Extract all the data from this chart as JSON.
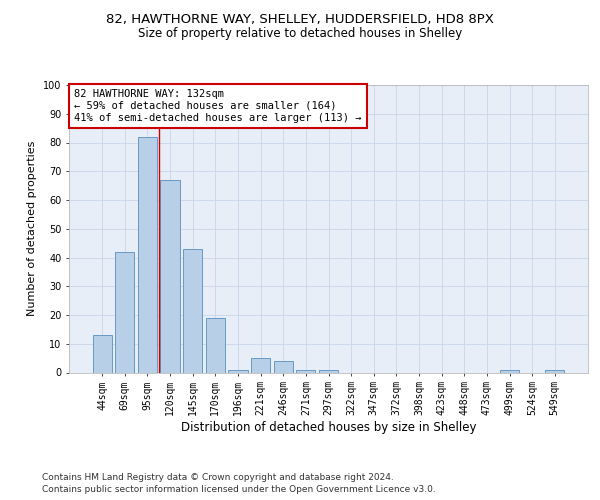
{
  "title_line1": "82, HAWTHORNE WAY, SHELLEY, HUDDERSFIELD, HD8 8PX",
  "title_line2": "Size of property relative to detached houses in Shelley",
  "xlabel": "Distribution of detached houses by size in Shelley",
  "ylabel": "Number of detached properties",
  "categories": [
    "44sqm",
    "69sqm",
    "95sqm",
    "120sqm",
    "145sqm",
    "170sqm",
    "196sqm",
    "221sqm",
    "246sqm",
    "271sqm",
    "297sqm",
    "322sqm",
    "347sqm",
    "372sqm",
    "398sqm",
    "423sqm",
    "448sqm",
    "473sqm",
    "499sqm",
    "524sqm",
    "549sqm"
  ],
  "values": [
    13,
    42,
    82,
    67,
    43,
    19,
    1,
    5,
    4,
    1,
    1,
    0,
    0,
    0,
    0,
    0,
    0,
    0,
    1,
    0,
    1
  ],
  "bar_color": "#b8cfe8",
  "bar_edge_color": "#6899c4",
  "reference_line_color": "#cc0000",
  "reference_line_x": 2.5,
  "annotation_text": "82 HAWTHORNE WAY: 132sqm\n← 59% of detached houses are smaller (164)\n41% of semi-detached houses are larger (113) →",
  "annotation_box_facecolor": "#ffffff",
  "annotation_box_edgecolor": "#cc0000",
  "ylim": [
    0,
    100
  ],
  "yticks": [
    0,
    10,
    20,
    30,
    40,
    50,
    60,
    70,
    80,
    90,
    100
  ],
  "grid_color": "#c8d4e8",
  "background_color": "#e8eef8",
  "footer_line1": "Contains HM Land Registry data © Crown copyright and database right 2024.",
  "footer_line2": "Contains public sector information licensed under the Open Government Licence v3.0.",
  "title_fontsize": 9.5,
  "subtitle_fontsize": 8.5,
  "ylabel_fontsize": 8,
  "xlabel_fontsize": 8.5,
  "tick_fontsize": 7,
  "annotation_fontsize": 7.5,
  "footer_fontsize": 6.5
}
